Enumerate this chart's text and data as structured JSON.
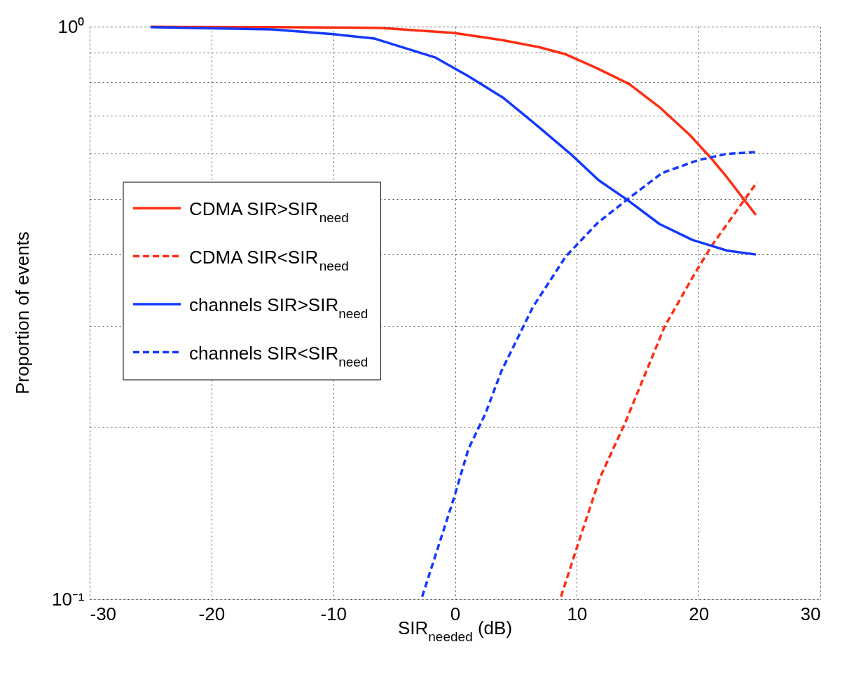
{
  "chart_data": {
    "type": "line",
    "xlabel": "SIR$_{needed}$ (dB)",
    "ylabel": "Proportion of events",
    "log": "y",
    "xlim": [
      -30,
      30
    ],
    "xticks": [
      -30,
      -20,
      -10,
      0,
      10,
      20,
      30
    ],
    "ylim": [
      0.1,
      1
    ],
    "yticks": [
      {
        "value": 0.1,
        "label": "10⁻¹"
      },
      {
        "value": 0.2,
        "label": null
      },
      {
        "value": 0.3,
        "label": null
      },
      {
        "value": 0.4,
        "label": null
      },
      {
        "value": 0.5,
        "label": null
      },
      {
        "value": 0.6,
        "label": null
      },
      {
        "value": 0.7,
        "label": null
      },
      {
        "value": 0.8,
        "label": null
      },
      {
        "value": 0.9,
        "label": null
      },
      {
        "value": 1,
        "label": "10⁰"
      }
    ],
    "grid": true,
    "legend": "left",
    "marker": "none",
    "series": [
      {
        "name": "CDMA SIR>SIR$_{need}$",
        "color": "#ff2d12",
        "line_style": "solid",
        "x": [
          -25,
          -15,
          -6.2,
          -0.1,
          3.8,
          6.9,
          9.0,
          11.6,
          14.3,
          16.8,
          19.3,
          21.0,
          22.2,
          24.7
        ],
        "values": [
          0.999,
          0.998,
          0.995,
          0.975,
          0.948,
          0.921,
          0.896,
          0.847,
          0.794,
          0.723,
          0.646,
          0.59,
          0.55,
          0.469
        ]
      },
      {
        "name": "CDMA SIR<SIR$_{need}$",
        "color": "#ff2d12",
        "line_style": "dashed",
        "x": [
          8.7,
          10.0,
          11.9,
          14.0,
          17.2,
          19.7,
          21.1,
          23.9,
          24.8
        ],
        "values": [
          0.101,
          0.123,
          0.163,
          0.204,
          0.299,
          0.371,
          0.415,
          0.503,
          0.535
        ]
      },
      {
        "name": "channels SIR>SIR$_{need}$",
        "color": "#1438ff",
        "line_style": "solid",
        "x": [
          -25,
          -15,
          -10,
          -6.6,
          -1.6,
          1.1,
          4.0,
          6.8,
          9.5,
          11.8,
          14.1,
          16.8,
          19.5,
          22.4,
          24.7
        ],
        "values": [
          0.998,
          0.989,
          0.97,
          0.953,
          0.883,
          0.819,
          0.75,
          0.67,
          0.599,
          0.539,
          0.499,
          0.452,
          0.424,
          0.406,
          0.4
        ]
      },
      {
        "name": "channels SIR<SIR$_{need}$",
        "color": "#1438ff",
        "line_style": "dashed",
        "x": [
          -2.7,
          -0.1,
          1.1,
          2.5,
          3.8,
          6.4,
          9.1,
          11.7,
          14.2,
          17.0,
          19.9,
          22.2,
          24.7
        ],
        "values": [
          0.101,
          0.15,
          0.183,
          0.211,
          0.25,
          0.324,
          0.397,
          0.454,
          0.5,
          0.555,
          0.584,
          0.599,
          0.604
        ]
      }
    ]
  }
}
